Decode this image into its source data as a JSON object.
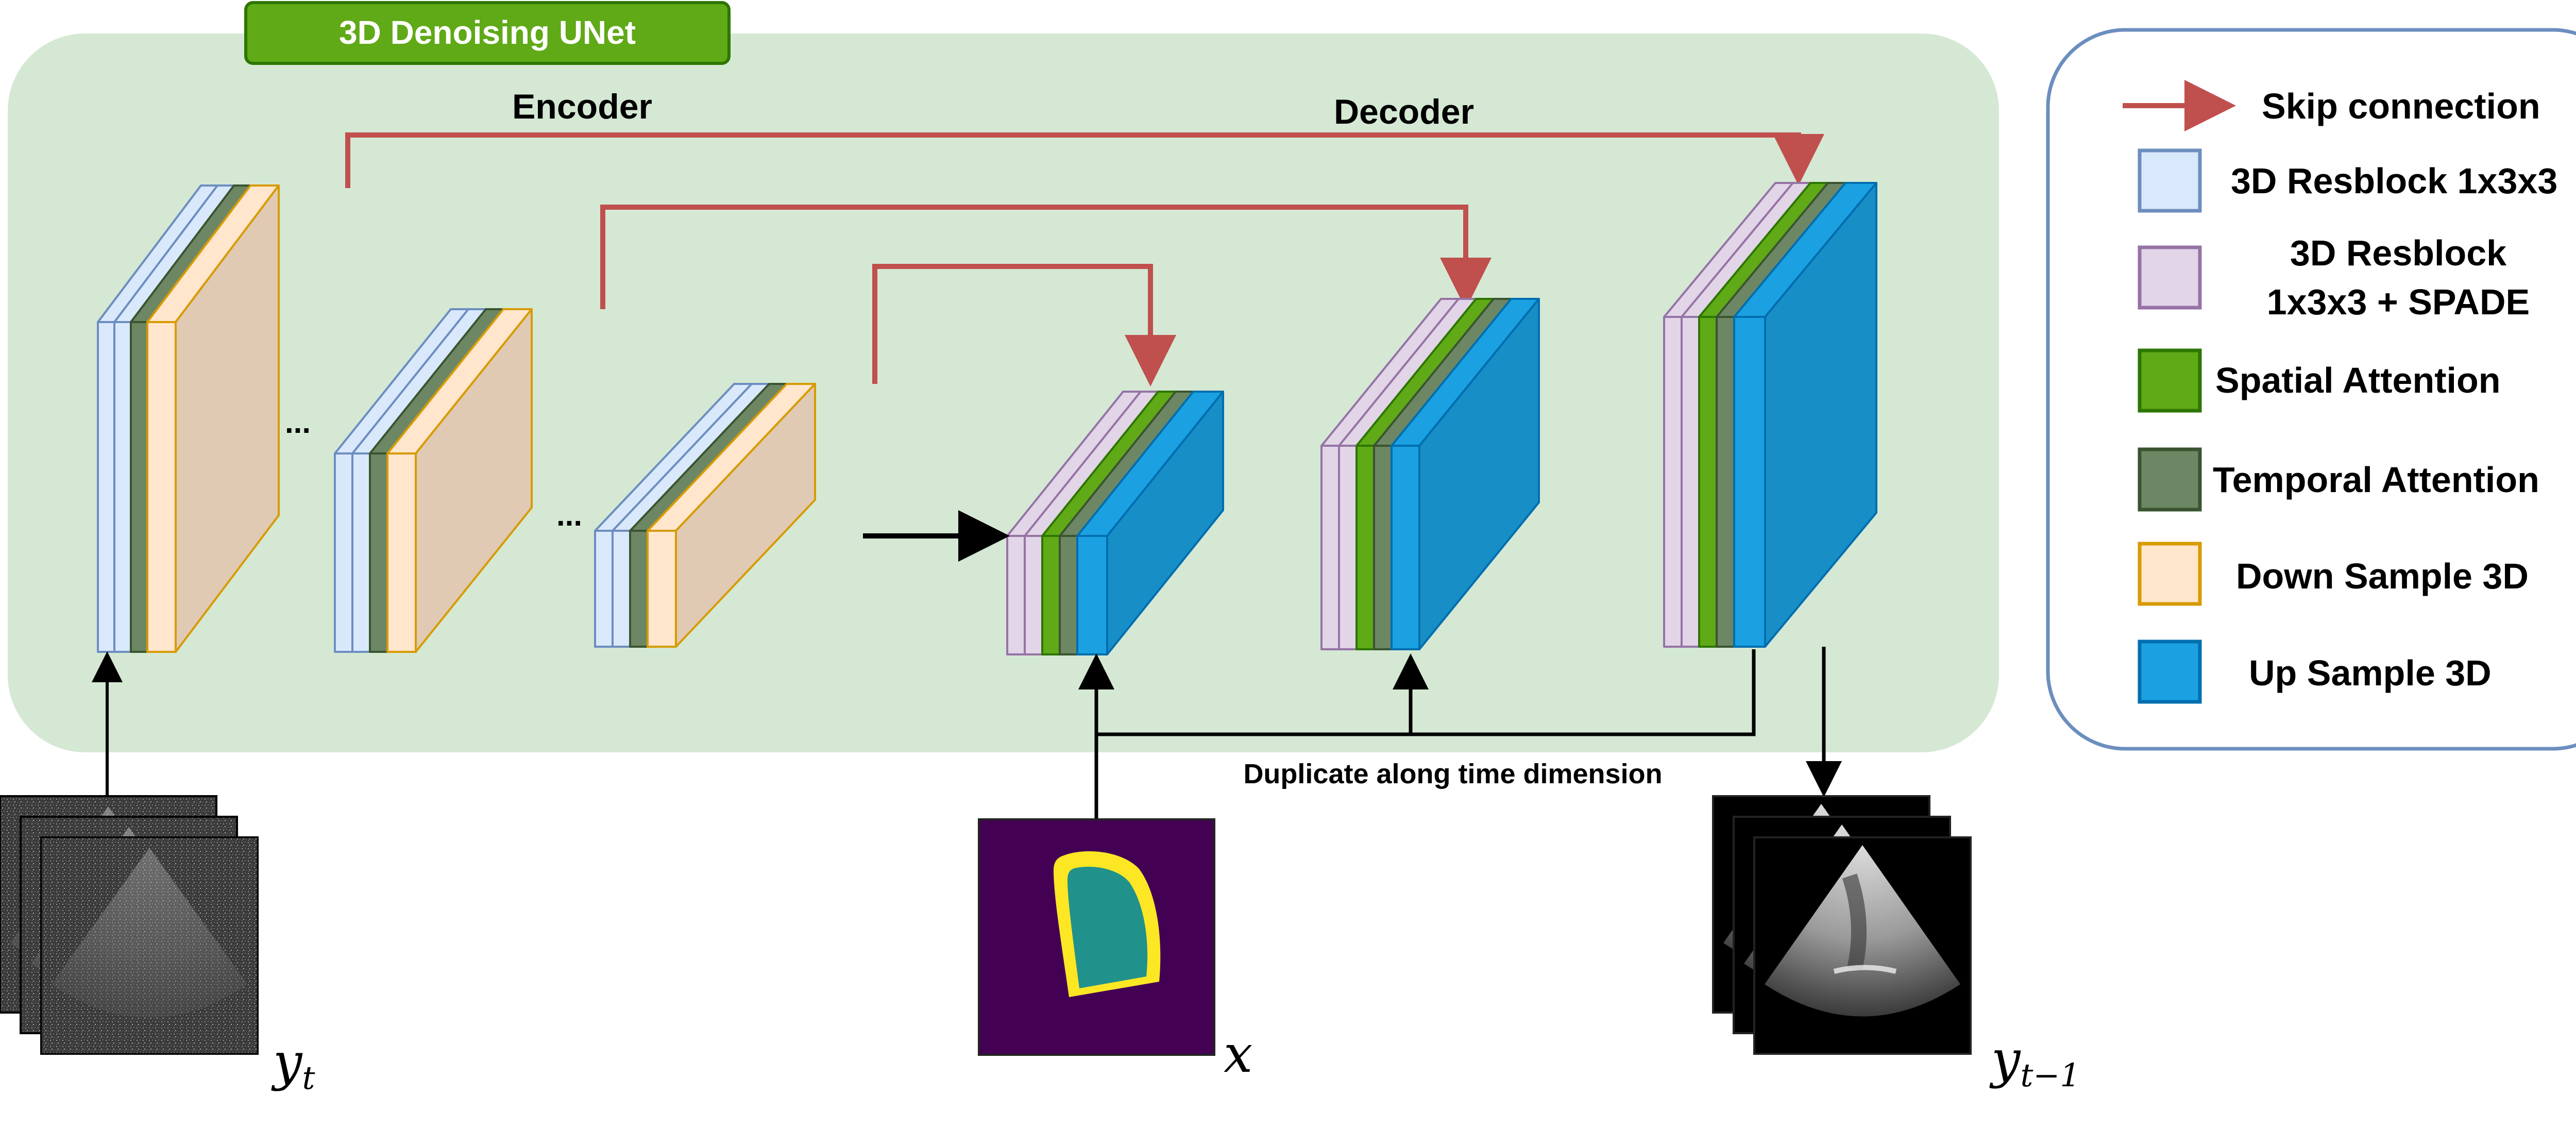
{
  "title": "3D Denoising UNet",
  "labels": {
    "encoder": "Encoder",
    "decoder": "Decoder",
    "duplicate": "Duplicate along time dimension",
    "ellipsis": "..."
  },
  "inputs": {
    "y_t": "y",
    "y_t_sub": "t",
    "x": "x",
    "y_prev": "y",
    "y_prev_sub": "t−1"
  },
  "legend": [
    {
      "key": "skip",
      "label": "Skip connection",
      "color": "#C0504D"
    },
    {
      "key": "resblock",
      "label": "3D Resblock 1x3x3",
      "color": "#DAE8FC"
    },
    {
      "key": "resblock_spade",
      "label": "3D Resblock",
      "label2": "1x3x3 + SPADE",
      "color": "#E1D5E7"
    },
    {
      "key": "spatial",
      "label": "Spatial Attention",
      "color": "#60A917"
    },
    {
      "key": "temporal",
      "label": "Temporal Attention",
      "color": "#6D8764"
    },
    {
      "key": "down",
      "label": "Down Sample 3D",
      "color": "#FFE6CC"
    },
    {
      "key": "up",
      "label": "Up Sample 3D",
      "color": "#1BA1E2"
    }
  ],
  "colors": {
    "unet_bg": "#D5E8D4",
    "title_bg": "#60A917",
    "legend_border": "#6C8EBF",
    "skip": "#C0504D"
  }
}
